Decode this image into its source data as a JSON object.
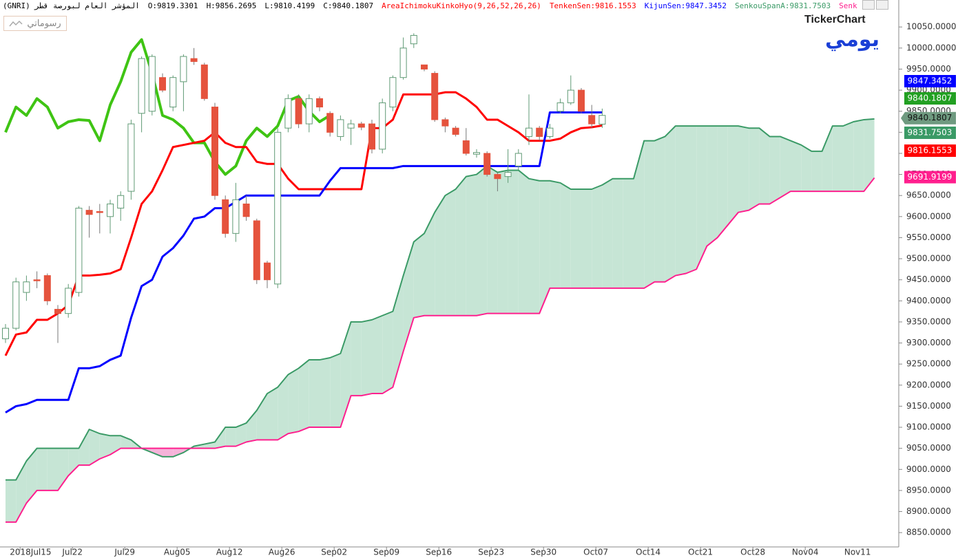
{
  "header": {
    "symbol": "المؤشر العام لبورصة قطر (GNRI)",
    "open": "O:9819.3301",
    "high": "H:9856.2695",
    "low": "L:9810.4199",
    "close": "C:9840.1807",
    "indicator": "AreaIchimokuKinkoHyo(9,26,52,26,26)"
  },
  "drawings_button": "رسوماتي",
  "logo": "TickerChart",
  "period": "يومي",
  "chart_data": {
    "type": "candlestick",
    "categories": [
      null,
      null,
      "2018Jul15",
      null,
      null,
      null,
      "Jul22",
      null,
      null,
      null,
      null,
      "Jul29",
      null,
      null,
      null,
      null,
      "Aug05",
      null,
      null,
      null,
      null,
      "Aug12",
      null,
      null,
      null,
      null,
      "Aug26",
      null,
      null,
      null,
      null,
      "Sep02",
      null,
      null,
      null,
      null,
      "Sep09",
      null,
      null,
      null,
      null,
      "Sep16",
      null,
      null,
      null,
      null,
      "Sep23",
      null,
      null,
      null,
      null,
      "Sep30",
      null,
      null,
      null,
      null,
      "Oct07",
      null,
      null,
      null,
      null,
      "Oct14",
      null,
      null,
      null,
      null,
      "Oct21",
      null,
      null,
      null,
      null,
      "Oct28",
      null,
      null,
      null,
      null,
      "Nov04",
      null,
      null,
      null,
      null,
      "Nov11",
      null,
      null
    ],
    "candles": {
      "up_color": "#5f9a74",
      "down_color": "#e5533d",
      "open": [
        9310,
        9335,
        9420,
        9450,
        9460,
        9380,
        9370,
        9420,
        9615,
        9612,
        9600,
        9620,
        9660,
        9845,
        9850,
        9930,
        9860,
        9920,
        9975,
        9960,
        9860,
        9640,
        9560,
        9630,
        9590,
        9490,
        9440,
        9810,
        9880,
        9820,
        9880,
        9845,
        9790,
        9810,
        9820,
        9820,
        9760,
        9860,
        9930,
        10010,
        9960,
        9940,
        9830,
        9810,
        9780,
        9748,
        9750,
        9700,
        9695,
        9720,
        9790,
        9810,
        9790,
        9850,
        9870,
        9900,
        9840,
        9819.3301,
        null,
        null,
        null,
        null,
        null,
        null,
        null,
        null,
        null,
        null,
        null,
        null,
        null,
        null,
        null,
        null,
        null,
        null,
        null,
        null,
        null,
        null,
        null,
        null,
        null,
        null
      ],
      "high": [
        9345,
        9455,
        9460,
        9470,
        9465,
        9390,
        9440,
        9625,
        9625,
        9630,
        9640,
        9660,
        9830,
        9980,
        9985,
        9940,
        9935,
        9985,
        10000,
        9965,
        9870,
        9650,
        9680,
        9650,
        9595,
        9495,
        9810,
        9890,
        9890,
        9890,
        9885,
        9850,
        9840,
        9830,
        9825,
        9830,
        9880,
        9935,
        10025,
        10035,
        9960,
        9945,
        9835,
        9815,
        9810,
        9760,
        9755,
        9705,
        9760,
        9760,
        9890,
        9815,
        9820,
        9880,
        9935,
        9905,
        9865,
        9856.2695,
        null,
        null,
        null,
        null,
        null,
        null,
        null,
        null,
        null,
        null,
        null,
        null,
        null,
        null,
        null,
        null,
        null,
        null,
        null,
        null,
        null,
        null,
        null,
        null,
        null,
        null
      ],
      "low": [
        9300,
        9330,
        9400,
        9430,
        9390,
        9300,
        9360,
        9410,
        9550,
        9560,
        9560,
        9590,
        9640,
        9800,
        9840,
        9895,
        9850,
        9850,
        9960,
        9875,
        9640,
        9550,
        9540,
        9590,
        9440,
        9430,
        9430,
        9800,
        9810,
        9800,
        9850,
        9790,
        9780,
        9770,
        9805,
        9750,
        9750,
        9850,
        9925,
        10000,
        9945,
        9825,
        9800,
        9790,
        9745,
        9740,
        9695,
        9660,
        9680,
        9710,
        9770,
        9780,
        9785,
        9845,
        9865,
        9845,
        9810,
        9810.4199,
        null,
        null,
        null,
        null,
        null,
        null,
        null,
        null,
        null,
        null,
        null,
        null,
        null,
        null,
        null,
        null,
        null,
        null,
        null,
        null,
        null,
        null,
        null,
        null,
        null,
        null
      ],
      "close": [
        9335,
        9445,
        9445,
        9448,
        9400,
        9370,
        9430,
        9620,
        9605,
        9610,
        9630,
        9650,
        9820,
        9975,
        9980,
        9900,
        9930,
        9980,
        9968,
        9880,
        9650,
        9560,
        9640,
        9600,
        9450,
        9450,
        9800,
        9880,
        9820,
        9880,
        9860,
        9800,
        9830,
        9820,
        9812,
        9760,
        9870,
        9930,
        10000,
        10030,
        9950,
        9830,
        9815,
        9795,
        9750,
        9752,
        9700,
        9690,
        9705,
        9750,
        9810,
        9790,
        9810,
        9870,
        9900,
        9850,
        9820,
        9840.1807,
        null,
        null,
        null,
        null,
        null,
        null,
        null,
        null,
        null,
        null,
        null,
        null,
        null,
        null,
        null,
        null,
        null,
        null,
        null,
        null,
        null,
        null,
        null,
        null,
        null,
        null
      ]
    },
    "series": [
      {
        "legend": "TenkenSen:9816.1553",
        "color": "#ff0000",
        "width": 3,
        "values": [
          9270,
          9320,
          9325,
          9355,
          9355,
          9370,
          9390,
          9460,
          9460,
          9462,
          9465,
          9475,
          9550,
          9630,
          9660,
          9710,
          9765,
          9770,
          9775,
          9780,
          9800,
          9775,
          9765,
          9765,
          9730,
          9725,
          9725,
          9690,
          9665,
          9665,
          9665,
          9665,
          9665,
          9665,
          9665,
          9810,
          9810,
          9830,
          9890,
          9890,
          9890,
          9890,
          9895,
          9895,
          9880,
          9860,
          9830,
          9830,
          9815,
          9800,
          9780,
          9780,
          9780,
          9785,
          9800,
          9810,
          9812,
          9816.1553,
          null,
          null,
          null,
          null,
          null,
          null,
          null,
          null,
          null,
          null,
          null,
          null,
          null,
          null,
          null,
          null,
          null,
          null,
          null,
          null,
          null,
          null,
          null,
          null,
          null,
          null
        ]
      },
      {
        "legend": "KijunSen:9847.3452",
        "color": "#0000ff",
        "width": 3,
        "values": [
          9135,
          9150,
          9155,
          9165,
          9165,
          9165,
          9165,
          9240,
          9240,
          9245,
          9260,
          9270,
          9360,
          9435,
          9450,
          9505,
          9525,
          9555,
          9595,
          9600,
          9620,
          9620,
          9635,
          9650,
          9650,
          9650,
          9650,
          9650,
          9650,
          9650,
          9650,
          9685,
          9715,
          9715,
          9715,
          9715,
          9715,
          9715,
          9720,
          9720,
          9720,
          9720,
          9720,
          9720,
          9720,
          9720,
          9720,
          9720,
          9720,
          9720,
          9720,
          9720,
          9847.3452,
          9847.3452,
          9847.3452,
          9847.3452,
          9847.3452,
          9847.3452,
          null,
          null,
          null,
          null,
          null,
          null,
          null,
          null,
          null,
          null,
          null,
          null,
          null,
          null,
          null,
          null,
          null,
          null,
          null,
          null,
          null,
          null,
          null,
          null,
          null,
          null
        ]
      },
      {
        "color": "#3fc414",
        "width": 4,
        "values": [
          9800,
          9860,
          9840,
          9880,
          9860,
          9810,
          9825,
          9830,
          9828,
          9780,
          9865,
          9920,
          9990,
          10020,
          9940,
          9840,
          9830,
          9810,
          9775,
          9775,
          9730,
          9700,
          9720,
          9780,
          9810,
          9790,
          9815,
          9875,
          9885,
          9850,
          9825,
          9840.1807,
          null,
          null,
          null,
          null,
          null,
          null,
          null,
          null,
          null,
          null,
          null,
          null,
          null,
          null,
          null,
          null,
          null,
          null,
          null,
          null,
          null,
          null,
          null,
          null,
          null,
          null,
          null,
          null,
          null,
          null,
          null,
          null,
          null,
          null,
          null,
          null,
          null,
          null,
          null,
          null,
          null,
          null,
          null,
          null,
          null,
          null,
          null,
          null,
          null,
          null,
          null,
          null
        ]
      },
      {
        "legend": "SenkouSpanA:9831.7503",
        "color": "#3a9a66",
        "width": 2,
        "values": [
          8975,
          8975,
          9020,
          9050,
          9050,
          9050,
          9050,
          9050,
          9095,
          9085,
          9080,
          9080,
          9070,
          9050,
          9040,
          9030,
          9030,
          9040,
          9055,
          9060,
          9065,
          9100,
          9100,
          9110,
          9140,
          9180,
          9195,
          9225,
          9240,
          9260,
          9260,
          9265,
          9275,
          9350,
          9350,
          9355,
          9365,
          9375,
          9460,
          9540,
          9560,
          9610,
          9650,
          9665,
          9695,
          9700,
          9720,
          9705,
          9710,
          9710,
          9690,
          9685,
          9685,
          9680,
          9665,
          9665,
          9665,
          9675,
          9690,
          9690,
          9690,
          9780,
          9780,
          9790,
          9815,
          9815,
          9815,
          9815,
          9815,
          9815,
          9815,
          9810,
          9810,
          9790,
          9790,
          9780,
          9770,
          9755,
          9755,
          9815,
          9815,
          9825,
          9830,
          9831.7503
        ]
      },
      {
        "legend": "Senk",
        "color": "#ff1f8e",
        "width": 2,
        "values": [
          8875,
          8875,
          8920,
          8950,
          8950,
          8950,
          8985,
          9010,
          9010,
          9025,
          9035,
          9050,
          9050,
          9050,
          9050,
          9050,
          9050,
          9050,
          9050,
          9050,
          9050,
          9055,
          9055,
          9065,
          9070,
          9070,
          9070,
          9085,
          9090,
          9100,
          9100,
          9100,
          9100,
          9175,
          9175,
          9180,
          9180,
          9195,
          9280,
          9360,
          9365,
          9365,
          9365,
          9365,
          9365,
          9365,
          9370,
          9370,
          9370,
          9370,
          9370,
          9370,
          9430,
          9430,
          9430,
          9430,
          9430,
          9430,
          9430,
          9430,
          9430,
          9430,
          9445,
          9445,
          9460,
          9465,
          9475,
          9530,
          9550,
          9580,
          9610,
          9615,
          9630,
          9630,
          9645,
          9660,
          9660,
          9660,
          9660,
          9660,
          9660,
          9660,
          9660,
          9691.9199
        ]
      }
    ],
    "cloud": {
      "up_color": "#c6e5d5",
      "down_color": "#f5b3d9"
    },
    "ylim": [
      8816,
      10114
    ],
    "yticks": [
      {
        "value": 8850,
        "label": "8850.0000"
      },
      {
        "value": 8900,
        "label": "8900.0000"
      },
      {
        "value": 8950,
        "label": "8950.0000"
      },
      {
        "value": 9000,
        "label": "9000.0000"
      },
      {
        "value": 9050,
        "label": "9050.0000"
      },
      {
        "value": 9100,
        "label": "9100.0000"
      },
      {
        "value": 9150,
        "label": "9150.0000"
      },
      {
        "value": 9200,
        "label": "9200.0000"
      },
      {
        "value": 9250,
        "label": "9250.0000"
      },
      {
        "value": 9300,
        "label": "9300.0000"
      },
      {
        "value": 9350,
        "label": "9350.0000"
      },
      {
        "value": 9400,
        "label": "9400.0000"
      },
      {
        "value": 9450,
        "label": "9450.0000"
      },
      {
        "value": 9500,
        "label": "9500.0000"
      },
      {
        "value": 9550,
        "label": "9550.0000"
      },
      {
        "value": 9600,
        "label": "9600.0000"
      },
      {
        "value": 9650,
        "label": "9650.0000"
      },
      {
        "value": 9700,
        "label": "9700.0000"
      },
      {
        "value": 9750,
        "label": "9750.0000"
      },
      {
        "value": 9800,
        "label": "9800.0000"
      },
      {
        "value": 9850,
        "label": "9850.0000"
      },
      {
        "value": 9900,
        "label": "9900.0000"
      },
      {
        "value": 9950,
        "label": "9950.0000"
      },
      {
        "value": 10000,
        "label": "10000.0000"
      },
      {
        "value": 10050,
        "label": "10050.0000"
      }
    ],
    "grid": false
  }
}
